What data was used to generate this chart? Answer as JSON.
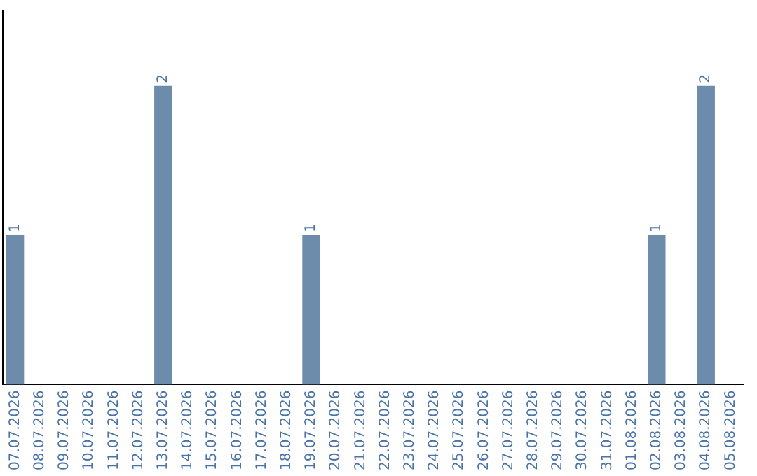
{
  "chart_data": {
    "type": "bar",
    "categories": [
      "07.07.2026",
      "08.07.2026",
      "09.07.2026",
      "10.07.2026",
      "11.07.2026",
      "12.07.2026",
      "13.07.2026",
      "14.07.2026",
      "15.07.2026",
      "16.07.2026",
      "17.07.2026",
      "18.07.2026",
      "19.07.2026",
      "20.07.2026",
      "21.07.2026",
      "22.07.2026",
      "23.07.2026",
      "24.07.2026",
      "25.07.2026",
      "26.07.2026",
      "27.07.2026",
      "28.07.2026",
      "29.07.2026",
      "30.07.2026",
      "31.07.2026",
      "01.08.2026",
      "02.08.2026",
      "03.08.2026",
      "04.08.2026",
      "05.08.2026"
    ],
    "values": [
      1,
      0,
      0,
      0,
      0,
      0,
      2,
      0,
      0,
      0,
      0,
      0,
      1,
      0,
      0,
      0,
      0,
      0,
      0,
      0,
      0,
      0,
      0,
      0,
      0,
      0,
      1,
      0,
      2,
      0
    ],
    "value_labels": [
      "1",
      null,
      null,
      null,
      null,
      null,
      "2",
      null,
      null,
      null,
      null,
      null,
      "1",
      null,
      null,
      null,
      null,
      null,
      null,
      null,
      null,
      null,
      null,
      null,
      null,
      null,
      "1",
      null,
      "2",
      null
    ],
    "color": "#6d8cab",
    "grid": false,
    "tick_labels": "x",
    "legend": false
  }
}
